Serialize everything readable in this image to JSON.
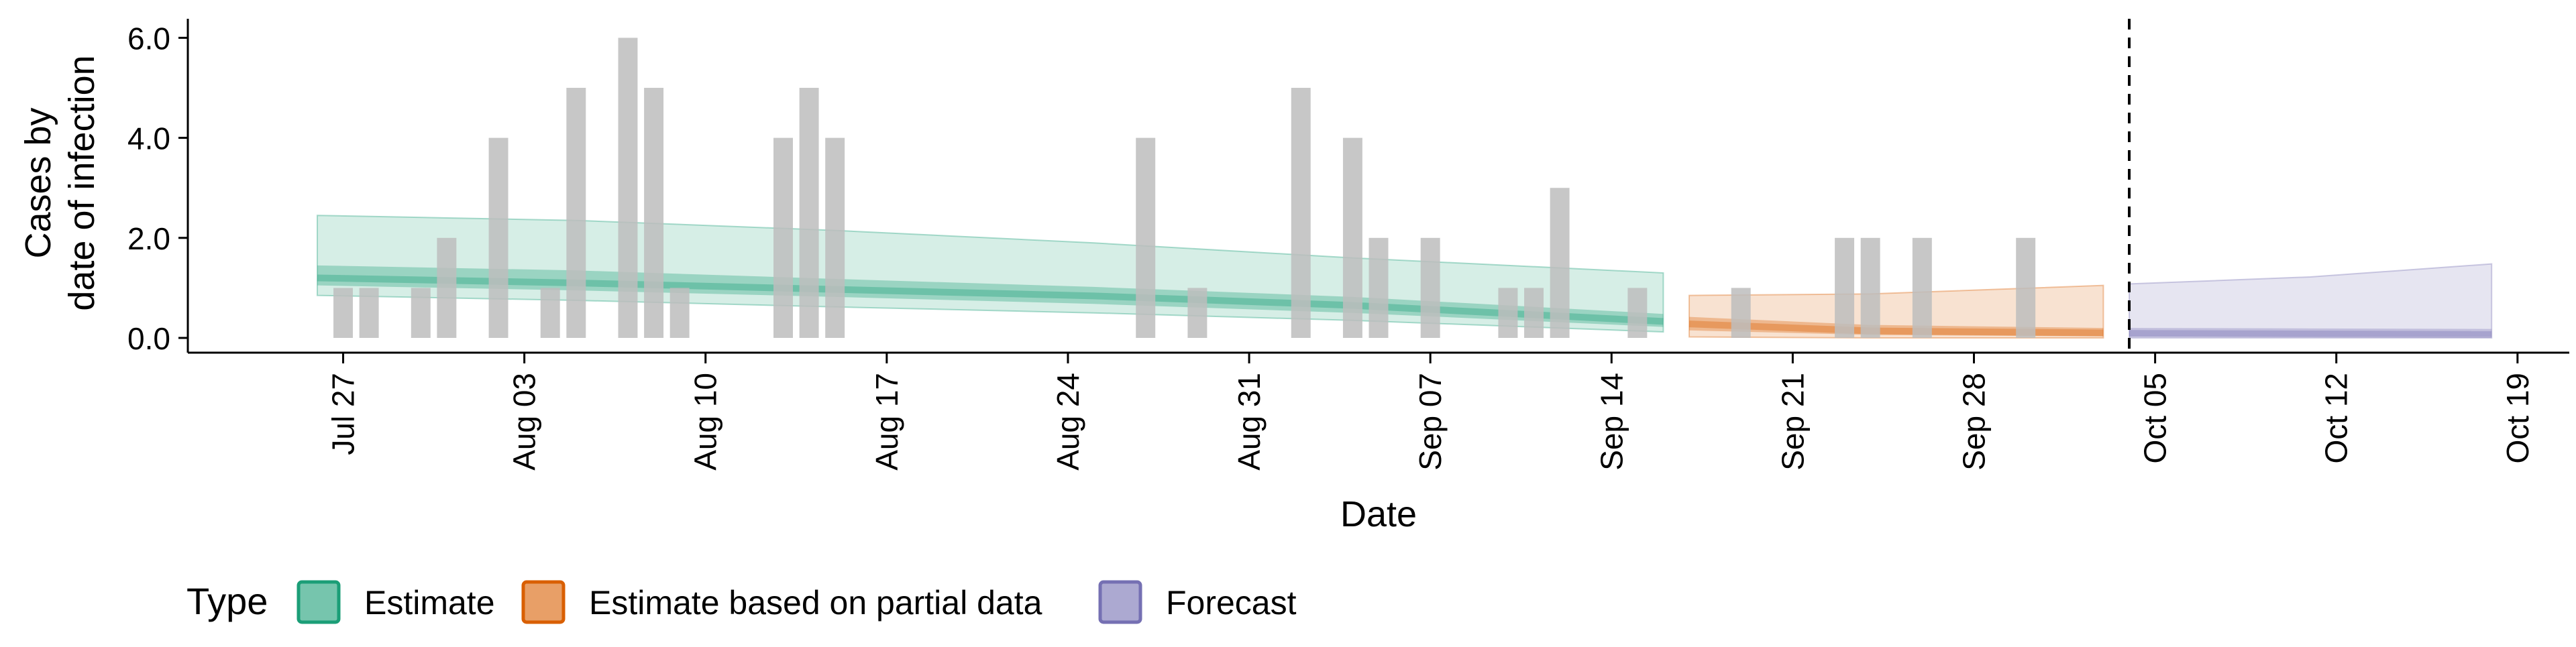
{
  "chart_data": {
    "type": "bar",
    "title": "",
    "xlabel": "Date",
    "ylabel_lines": [
      "Cases by",
      "date of infection"
    ],
    "ylim": [
      0,
      6.0
    ],
    "yticks": [
      0.0,
      2.0,
      4.0,
      6.0
    ],
    "ytick_labels": [
      "0.0",
      "2.0",
      "4.0",
      "6.0"
    ],
    "xlim": [
      "2020-07-21",
      "2020-10-21"
    ],
    "xticks": [
      "2020-07-27",
      "2020-08-03",
      "2020-08-10",
      "2020-08-17",
      "2020-08-24",
      "2020-08-31",
      "2020-09-07",
      "2020-09-14",
      "2020-09-21",
      "2020-09-28",
      "2020-10-05",
      "2020-10-12",
      "2020-10-19"
    ],
    "xtick_labels": [
      "Jul 27",
      "Aug 03",
      "Aug 10",
      "Aug 17",
      "Aug 24",
      "Aug 31",
      "Sep 07",
      "Sep 14",
      "Sep 21",
      "Sep 28",
      "Oct 05",
      "Oct 12",
      "Oct 19"
    ],
    "cutoff_date": "2020-10-04",
    "bars": {
      "color": "#bdbdbd",
      "dates": [
        "2020-07-27",
        "2020-07-28",
        "2020-07-30",
        "2020-07-31",
        "2020-08-02",
        "2020-08-04",
        "2020-08-05",
        "2020-08-07",
        "2020-08-08",
        "2020-08-09",
        "2020-08-13",
        "2020-08-14",
        "2020-08-15",
        "2020-08-27",
        "2020-08-29",
        "2020-09-02",
        "2020-09-04",
        "2020-09-05",
        "2020-09-07",
        "2020-09-10",
        "2020-09-11",
        "2020-09-12",
        "2020-09-15",
        "2020-09-19",
        "2020-09-23",
        "2020-09-24",
        "2020-09-26",
        "2020-09-30"
      ],
      "values": [
        1,
        1,
        1,
        2,
        4,
        1,
        5,
        6,
        5,
        1,
        4,
        5,
        4,
        4,
        1,
        5,
        4,
        2,
        2,
        1,
        1,
        3,
        1,
        1,
        2,
        2,
        2,
        2
      ]
    },
    "series": [
      {
        "name": "Estimate",
        "color": "#1b9e77",
        "points": [
          {
            "date": "2020-07-26",
            "lo90": 0.85,
            "hi90": 2.45,
            "lo50": 1.05,
            "hi50": 1.45,
            "median": 1.2
          },
          {
            "date": "2020-08-05",
            "lo90": 0.75,
            "hi90": 2.35,
            "lo50": 0.95,
            "hi50": 1.35,
            "median": 1.1
          },
          {
            "date": "2020-08-15",
            "lo90": 0.62,
            "hi90": 2.15,
            "lo50": 0.82,
            "hi50": 1.18,
            "median": 0.97
          },
          {
            "date": "2020-08-25",
            "lo90": 0.5,
            "hi90": 1.9,
            "lo50": 0.68,
            "hi50": 1.02,
            "median": 0.84
          },
          {
            "date": "2020-09-04",
            "lo90": 0.35,
            "hi90": 1.6,
            "lo50": 0.5,
            "hi50": 0.82,
            "median": 0.65
          },
          {
            "date": "2020-09-16",
            "lo90": 0.12,
            "hi90": 1.3,
            "lo50": 0.22,
            "hi50": 0.48,
            "median": 0.33
          }
        ]
      },
      {
        "name": "Estimate based on partial data",
        "color": "#d95f02",
        "points": [
          {
            "date": "2020-09-17",
            "lo90": 0.02,
            "hi90": 0.85,
            "lo50": 0.15,
            "hi50": 0.42,
            "median": 0.28
          },
          {
            "date": "2020-09-24",
            "lo90": 0.0,
            "hi90": 0.88,
            "lo50": 0.06,
            "hi50": 0.26,
            "median": 0.14
          },
          {
            "date": "2020-10-03",
            "lo90": 0.0,
            "hi90": 1.05,
            "lo50": 0.03,
            "hi50": 0.2,
            "median": 0.1
          }
        ]
      },
      {
        "name": "Forecast",
        "color": "#7570b3",
        "points": [
          {
            "date": "2020-10-04",
            "lo90": 0.0,
            "hi90": 1.08,
            "lo50": 0.02,
            "hi50": 0.2,
            "median": 0.09
          },
          {
            "date": "2020-10-11",
            "lo90": 0.0,
            "hi90": 1.22,
            "lo50": 0.02,
            "hi50": 0.19,
            "median": 0.08
          },
          {
            "date": "2020-10-18",
            "lo90": 0.0,
            "hi90": 1.48,
            "lo50": 0.02,
            "hi50": 0.18,
            "median": 0.07
          }
        ]
      }
    ],
    "legend": {
      "title": "Type",
      "position": "bottom",
      "items": [
        "Estimate",
        "Estimate based on partial data",
        "Forecast"
      ]
    }
  }
}
